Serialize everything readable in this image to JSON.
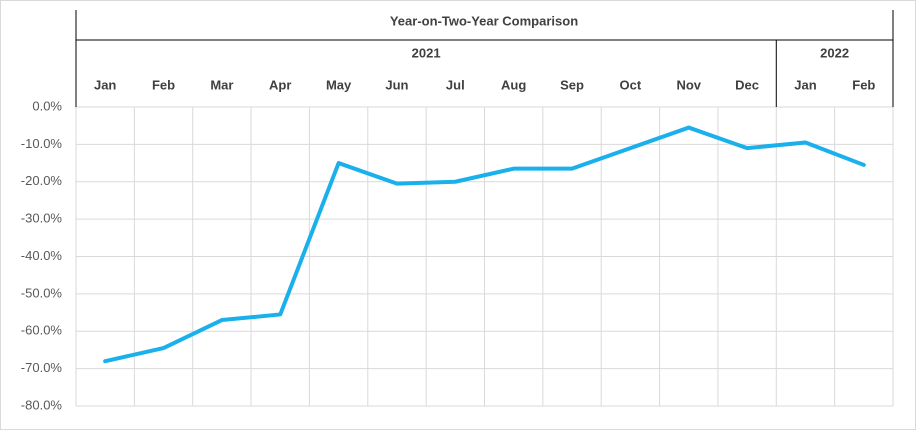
{
  "chart_data": {
    "type": "line",
    "axis_title": "Year-on-Two-Year Comparison",
    "groups": [
      {
        "name": "2021",
        "categories": [
          "Jan",
          "Feb",
          "Mar",
          "Apr",
          "May",
          "Jun",
          "Jul",
          "Aug",
          "Sep",
          "Oct",
          "Nov",
          "Dec"
        ]
      },
      {
        "name": "2022",
        "categories": [
          "Jan",
          "Feb"
        ]
      }
    ],
    "values": [
      -68,
      -64.5,
      -57,
      -55.5,
      -15,
      -20.5,
      -20,
      -16.5,
      -16.5,
      -11,
      -5.5,
      -11,
      -9.5,
      -15.5
    ],
    "color": "#1ab0ec",
    "ylim": [
      0,
      -80
    ],
    "yticks": [
      {
        "value": 0,
        "label": "0.0%"
      },
      {
        "value": -10,
        "label": "-10.0%"
      },
      {
        "value": -20,
        "label": "-20.0%"
      },
      {
        "value": -30,
        "label": "-30.0%"
      },
      {
        "value": -40,
        "label": "-40.0%"
      },
      {
        "value": -50,
        "label": "-50.0%"
      },
      {
        "value": -60,
        "label": "-60.0%"
      },
      {
        "value": -70,
        "label": "-70.0%"
      },
      {
        "value": -80,
        "label": "-80.0%"
      }
    ],
    "grid": true
  }
}
